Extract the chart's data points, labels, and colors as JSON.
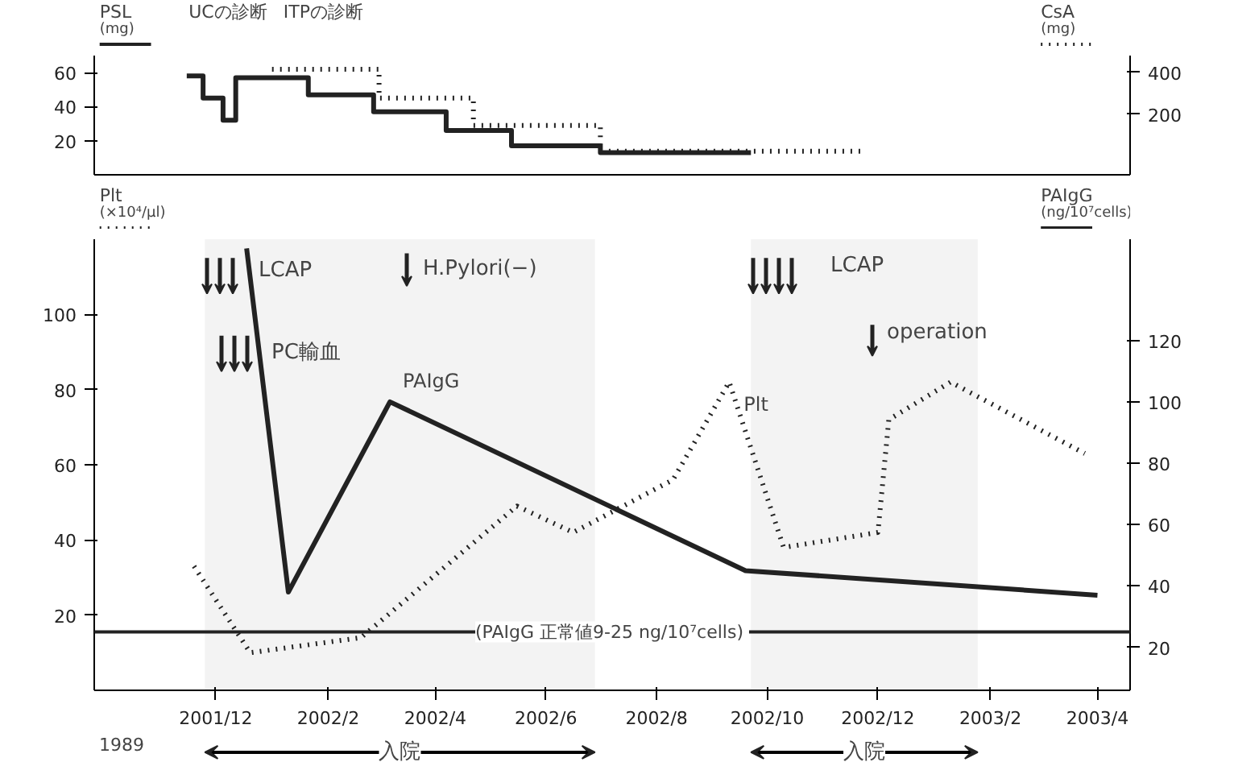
{
  "chart_data": [
    {
      "type": "step",
      "ylabel": "PSL (mg)",
      "y2label": "CsA (mg)",
      "xlim": [
        "2001-09-25",
        "2003-04-19"
      ],
      "ylim": [
        0,
        70
      ],
      "yticks": [
        20,
        40,
        60
      ],
      "y2lim": [
        -90,
        480
      ],
      "y2ticks": [
        200,
        400
      ],
      "xticks": [
        {
          "value": "2001-12",
          "label": null
        },
        {
          "value": "2002-02",
          "label": null
        },
        {
          "value": "2002-04",
          "label": null
        },
        {
          "value": "2002-06",
          "label": null
        },
        {
          "value": "2002-08",
          "label": null
        },
        {
          "value": "2002-10",
          "label": null
        },
        {
          "value": "2002-12",
          "label": null
        },
        {
          "value": "2003-02",
          "label": null
        },
        {
          "value": "2003-04",
          "label": null
        }
      ],
      "tick_labels": "y",
      "series": [
        {
          "color": "#222222",
          "line_style": "solid",
          "x": [
            "2001-11-15",
            "2001-11-24",
            "2001-12-05",
            "2001-12-12",
            "2002-01-21",
            "2002-02-26",
            "2002-04-07",
            "2002-05-13",
            "2002-07-01",
            "2002-09-22"
          ],
          "values": [
            58,
            45,
            32,
            57,
            47,
            37,
            26,
            17,
            13,
            13
          ]
        },
        {
          "color": "#222222",
          "line_style": "dotted",
          "axis": "y2",
          "x": [
            "2002-01-01",
            "2002-03-01",
            "2002-04-22",
            "2002-07-01",
            "2002-11-23"
          ],
          "values": [
            415,
            277,
            146,
            23,
            23
          ]
        }
      ],
      "annotations": [
        "UCの診断",
        "ITPの診断"
      ]
    },
    {
      "type": "line",
      "ylabel": "Plt (×10⁴/μl)",
      "y2label": "PAIgG (ng/10⁷cells)",
      "xlim": [
        "2001-09-25",
        "2003-04-19"
      ],
      "ylim": [
        0,
        120
      ],
      "yticks": [
        20,
        40,
        60,
        80,
        100
      ],
      "y2lim": [
        6,
        153
      ],
      "y2ticks": [
        20,
        40,
        60,
        80,
        100,
        120
      ],
      "xticks": [
        {
          "value": "2001-12",
          "label": "2001/12"
        },
        {
          "value": "2002-02",
          "label": "2002/2"
        },
        {
          "value": "2002-04",
          "label": "2002/4"
        },
        {
          "value": "2002-06",
          "label": "2002/6"
        },
        {
          "value": "2002-08",
          "label": "2002/8"
        },
        {
          "value": "2002-10",
          "label": "2002/10"
        },
        {
          "value": "2002-12",
          "label": "2002/12"
        },
        {
          "value": "2003-02",
          "label": "2003/2"
        },
        {
          "value": "2003-04",
          "label": "2003/4"
        }
      ],
      "series": [
        {
          "name": "Plt",
          "color": "#222222",
          "line_style": "dotted",
          "x": [
            "2001-11-19",
            "2001-12-20",
            "2002-02-19",
            "2002-05-16",
            "2002-06-16",
            "2002-08-10",
            "2002-09-10",
            "2002-10-10",
            "2002-12-01",
            "2002-12-07",
            "2003-01-10",
            "2003-03-25"
          ],
          "values": [
            33,
            10,
            14,
            49,
            42,
            56,
            82,
            38,
            42,
            72,
            82,
            63
          ]
        },
        {
          "name": "PAIgG",
          "color": "#222222",
          "line_style": "solid",
          "axis": "y2",
          "x": [
            "2001-12-18",
            "2002-01-10",
            "2002-03-07",
            "2002-09-19",
            "2003-04-01"
          ],
          "values": [
            150,
            38,
            100,
            45,
            37
          ]
        }
      ],
      "ref_lines": [
        {
          "axis": "y2",
          "value": 25,
          "label": "(PAIgG  正常値9-25 ng/10⁷cells)",
          "color": "#222222",
          "line_style": "solid"
        }
      ],
      "bands": [
        {
          "axis": "x",
          "from": "2001-11-25",
          "to": "2002-06-28",
          "label": "入院"
        },
        {
          "axis": "x",
          "from": "2002-09-22",
          "to": "2003-01-25",
          "label": "入院"
        }
      ],
      "annotations": [
        "LCAP",
        "PC輸血",
        "H.Pylori(−)",
        "LCAP",
        "operation",
        "1989"
      ]
    }
  ]
}
